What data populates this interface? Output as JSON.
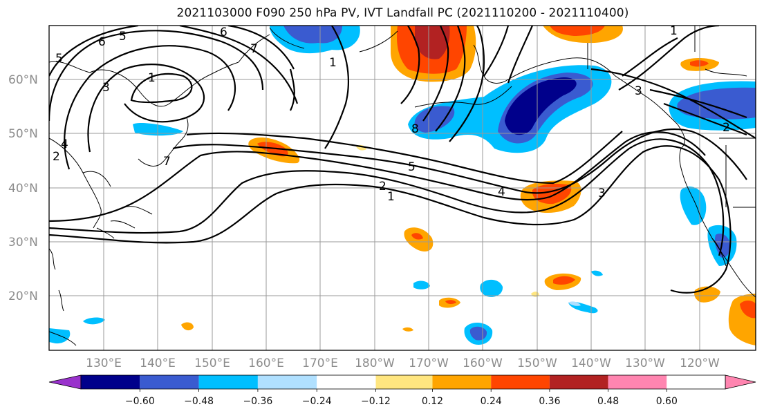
{
  "title": "2021103000 F090 250 hPa PV, IVT Landfall PC (2021110200 - 2021110400)",
  "map": {
    "lon_labels": [
      "130°E",
      "140°E",
      "150°E",
      "160°E",
      "170°E",
      "180°W",
      "170°W",
      "160°W",
      "150°W",
      "140°W",
      "130°W",
      "120°W"
    ],
    "lat_labels": [
      "60°N",
      "50°N",
      "40°N",
      "30°N",
      "20°N"
    ],
    "contour_labels": [
      "1",
      "2",
      "5",
      "4",
      "3",
      "2",
      "3",
      "6",
      "7",
      "1",
      "5",
      "6",
      "7",
      "8",
      "3",
      "1",
      "1",
      "2",
      "4",
      "5"
    ]
  },
  "colorbar": {
    "tick_labels": [
      "−0.60",
      "−0.48",
      "−0.36",
      "−0.24",
      "−0.12",
      "0.12",
      "0.24",
      "0.36",
      "0.48",
      "0.60"
    ],
    "colors": [
      "#9932cc",
      "#00008b",
      "#3a5bd0",
      "#00bfff",
      "#b0e0ff",
      "#ffffff",
      "#ffe680",
      "#ffa500",
      "#ff4500",
      "#b22222",
      "#ff85b0"
    ]
  }
}
